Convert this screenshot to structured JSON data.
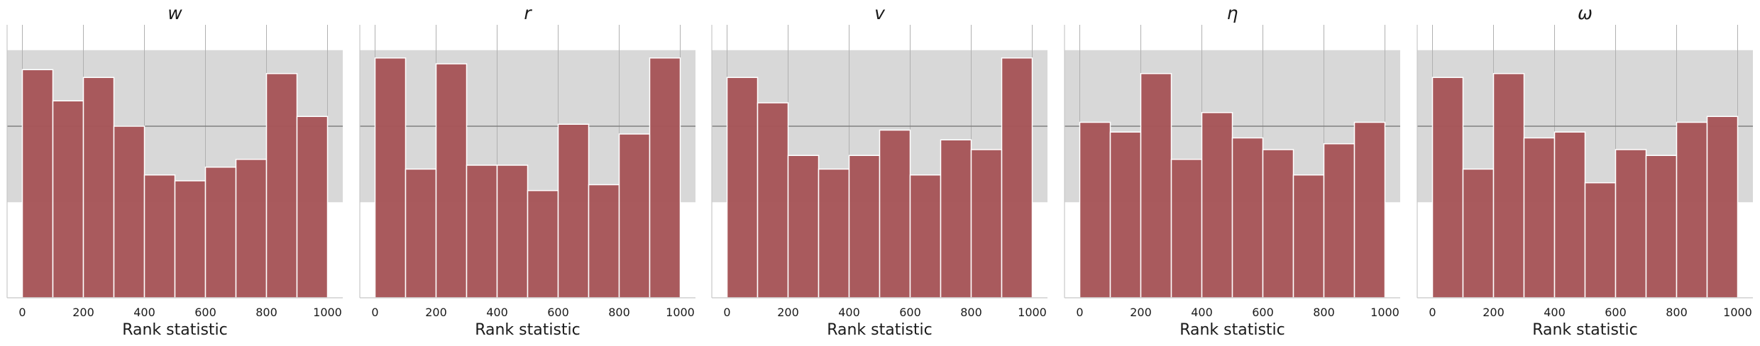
{
  "colors": {
    "bar_fill": "#a65558",
    "bar_stroke": "#ffffff",
    "band": "#d8d8d8",
    "mean_line": "#808080",
    "grid": "#b0b0b0",
    "spine": "#c8c8c8",
    "text": "#1a1a1a"
  },
  "chart_data": [
    {
      "type": "bar",
      "title": "w",
      "xlabel": "Rank statistic",
      "ylabel": "",
      "xlim": [
        -50,
        1050
      ],
      "ylim": [
        0,
        140
      ],
      "xticks": [
        "0",
        "200",
        "400",
        "600",
        "800",
        "1000"
      ],
      "bin_edges": [
        0,
        100,
        200,
        300,
        400,
        500,
        600,
        700,
        800,
        900,
        1000
      ],
      "values": [
        117,
        101,
        113,
        88,
        63,
        60,
        67,
        71,
        115,
        93
      ],
      "mean_line": 88,
      "band": [
        49,
        127
      ],
      "grid": true
    },
    {
      "type": "bar",
      "title": "r",
      "xlabel": "Rank statistic",
      "ylabel": "",
      "xlim": [
        -50,
        1050
      ],
      "ylim": [
        0,
        140
      ],
      "xticks": [
        "0",
        "200",
        "400",
        "600",
        "800",
        "1000"
      ],
      "bin_edges": [
        0,
        100,
        200,
        300,
        400,
        500,
        600,
        700,
        800,
        900,
        1000
      ],
      "values": [
        123,
        66,
        120,
        68,
        68,
        55,
        89,
        58,
        84,
        123
      ],
      "mean_line": 88,
      "band": [
        49,
        127
      ],
      "grid": true
    },
    {
      "type": "bar",
      "title": "v",
      "xlabel": "Rank statistic",
      "ylabel": "",
      "xlim": [
        -50,
        1050
      ],
      "ylim": [
        0,
        140
      ],
      "xticks": [
        "0",
        "200",
        "400",
        "600",
        "800",
        "1000"
      ],
      "bin_edges": [
        0,
        100,
        200,
        300,
        400,
        500,
        600,
        700,
        800,
        900,
        1000
      ],
      "values": [
        113,
        100,
        73,
        66,
        73,
        86,
        63,
        81,
        76,
        123
      ],
      "mean_line": 88,
      "band": [
        49,
        127
      ],
      "grid": true
    },
    {
      "type": "bar",
      "title": "η",
      "xlabel": "Rank statistic",
      "ylabel": "",
      "xlim": [
        -50,
        1050
      ],
      "ylim": [
        0,
        140
      ],
      "xticks": [
        "0",
        "200",
        "400",
        "600",
        "800",
        "1000"
      ],
      "bin_edges": [
        0,
        100,
        200,
        300,
        400,
        500,
        600,
        700,
        800,
        900,
        1000
      ],
      "values": [
        90,
        85,
        115,
        71,
        95,
        82,
        76,
        63,
        79,
        90
      ],
      "mean_line": 88,
      "band": [
        49,
        127
      ],
      "grid": true
    },
    {
      "type": "bar",
      "title": "ω",
      "xlabel": "Rank statistic",
      "ylabel": "",
      "xlim": [
        -50,
        1050
      ],
      "ylim": [
        0,
        140
      ],
      "xticks": [
        "0",
        "200",
        "400",
        "600",
        "800",
        "1000"
      ],
      "bin_edges": [
        0,
        100,
        200,
        300,
        400,
        500,
        600,
        700,
        800,
        900,
        1000
      ],
      "values": [
        113,
        66,
        115,
        82,
        85,
        59,
        76,
        73,
        90,
        93
      ],
      "mean_line": 88,
      "band": [
        49,
        127
      ],
      "grid": true
    }
  ]
}
